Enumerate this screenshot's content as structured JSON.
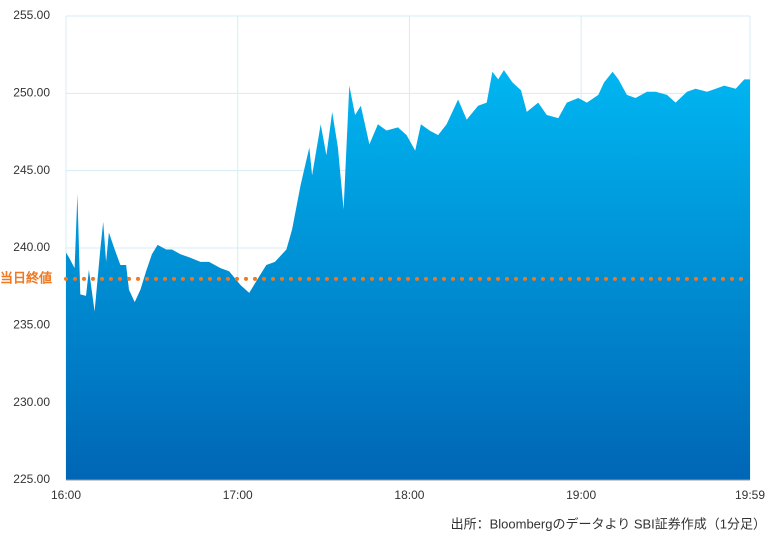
{
  "chart_data": {
    "type": "area",
    "x": [
      "16:00",
      "16:01",
      "16:03",
      "16:04",
      "16:05",
      "16:07",
      "16:08",
      "16:10",
      "16:12",
      "16:13",
      "16:14",
      "16:15",
      "16:17",
      "16:19",
      "16:21",
      "16:22",
      "16:24",
      "16:26",
      "16:28",
      "16:30",
      "16:32",
      "16:35",
      "16:37",
      "16:40",
      "16:43",
      "16:47",
      "16:50",
      "16:54",
      "16:57",
      "17:01",
      "17:04",
      "17:07",
      "17:10",
      "17:13",
      "17:17",
      "17:19",
      "17:22",
      "17:25",
      "17:26",
      "17:29",
      "17:31",
      "17:33",
      "17:35",
      "17:37",
      "17:39",
      "17:41",
      "17:43",
      "17:46",
      "17:49",
      "17:52",
      "17:56",
      "17:59",
      "18:02",
      "18:04",
      "18:07",
      "18:10",
      "18:13",
      "18:17",
      "18:20",
      "18:24",
      "18:27",
      "18:29",
      "18:31",
      "18:33",
      "18:36",
      "18:39",
      "18:41",
      "18:45",
      "18:48",
      "18:52",
      "18:55",
      "18:59",
      "19:02",
      "19:06",
      "19:08",
      "19:11",
      "19:13",
      "19:16",
      "19:19",
      "19:23",
      "19:26",
      "19:30",
      "19:33",
      "19:37",
      "19:40",
      "19:44",
      "19:47",
      "19:50",
      "19:54",
      "19:57",
      "19:59"
    ],
    "values": [
      239.7,
      239.4,
      238.7,
      243.5,
      237.0,
      236.9,
      238.6,
      235.9,
      239.9,
      241.7,
      239.1,
      241.0,
      239.9,
      238.9,
      238.9,
      237.3,
      236.5,
      237.3,
      238.5,
      239.6,
      240.2,
      239.9,
      239.9,
      239.6,
      239.4,
      239.1,
      239.1,
      238.7,
      238.5,
      237.6,
      237.1,
      238.0,
      238.9,
      239.1,
      239.9,
      241.2,
      244.1,
      246.5,
      244.7,
      248.0,
      246.0,
      248.8,
      246.5,
      242.5,
      250.5,
      248.6,
      249.2,
      246.7,
      248.0,
      247.6,
      247.8,
      247.3,
      246.3,
      248.0,
      247.6,
      247.3,
      248.0,
      249.6,
      248.3,
      249.2,
      249.4,
      251.4,
      250.9,
      251.5,
      250.7,
      250.2,
      248.8,
      249.4,
      248.6,
      248.4,
      249.4,
      249.7,
      249.4,
      249.9,
      250.7,
      251.4,
      250.9,
      249.9,
      249.7,
      250.1,
      250.1,
      249.9,
      249.4,
      250.1,
      250.3,
      250.1,
      250.3,
      250.5,
      250.3,
      250.9,
      250.9
    ],
    "color_top": "#00b6f1",
    "color_bottom": "#0066b5",
    "xlim": [
      "16:00",
      "19:59"
    ],
    "xticks": [
      "16:00",
      "17:00",
      "18:00",
      "19:00",
      "19:59"
    ],
    "ylim": [
      225,
      255
    ],
    "yticks": [
      {
        "value": 225,
        "label": "225.00"
      },
      {
        "value": 230,
        "label": "230.00"
      },
      {
        "value": 235,
        "label": "235.00"
      },
      {
        "value": 240,
        "label": "240.00"
      },
      {
        "value": 245,
        "label": "245.00"
      },
      {
        "value": 250,
        "label": "250.00"
      },
      {
        "value": 255,
        "label": "255.00"
      }
    ],
    "grid": true,
    "reference": {
      "label": "当日終値",
      "value": 238.0,
      "color": "#f07820"
    },
    "source": "出所：Bloombergのデータより SBI証券作成（1分足）"
  }
}
